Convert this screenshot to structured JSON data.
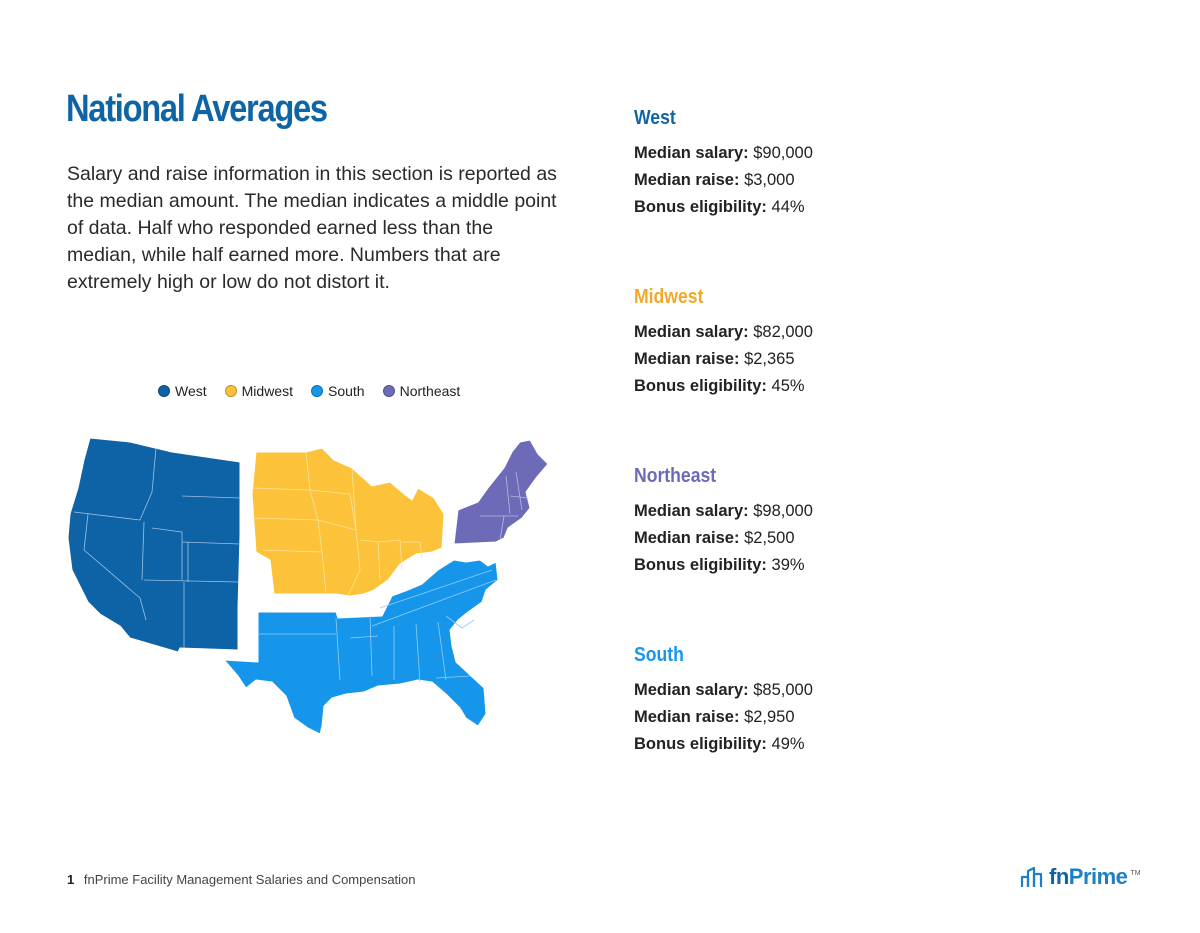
{
  "page": {
    "title": "National Averages",
    "intro": "Salary and raise information in this section is reported as the median amount. The median indicates a middle point of data. Half who responded earned less than the median, while half earned more. Numbers that are extremely high or low do not distort it."
  },
  "legend": [
    {
      "label": "West",
      "color": "#0e62a6"
    },
    {
      "label": "Midwest",
      "color": "#fcc33a"
    },
    {
      "label": "South",
      "color": "#1596ea"
    },
    {
      "label": "Northeast",
      "color": "#6d6bb8"
    }
  ],
  "regions": [
    {
      "name": "West",
      "color": "#0f64a6",
      "salary_label": "Median salary:",
      "salary": "$90,000",
      "raise_label": "Median raise:",
      "raise": "$3,000",
      "bonus_label": "Bonus eligibility:",
      "bonus": "44%"
    },
    {
      "name": "Midwest",
      "color": "#f0a92a",
      "salary_label": "Median salary:",
      "salary": "$82,000",
      "raise_label": "Median raise:",
      "raise": "$2,365",
      "bonus_label": "Bonus eligibility:",
      "bonus": "45%"
    },
    {
      "name": "Northeast",
      "color": "#6d6bb8",
      "salary_label": "Median salary:",
      "salary": "$98,000",
      "raise_label": "Median raise:",
      "raise": "$2,500",
      "bonus_label": "Bonus eligibility:",
      "bonus": "39%"
    },
    {
      "name": "South",
      "color": "#1596ea",
      "salary_label": "Median salary:",
      "salary": "$85,000",
      "raise_label": "Median raise:",
      "raise": "$2,950",
      "bonus_label": "Bonus eligibility:",
      "bonus": "49%"
    }
  ],
  "footer": {
    "page_number": "1",
    "text": "fnPrime Facility Management Salaries and Compensation"
  },
  "logo": {
    "text_fn": "fn",
    "text_prime": "Prime",
    "tm": "TM"
  }
}
